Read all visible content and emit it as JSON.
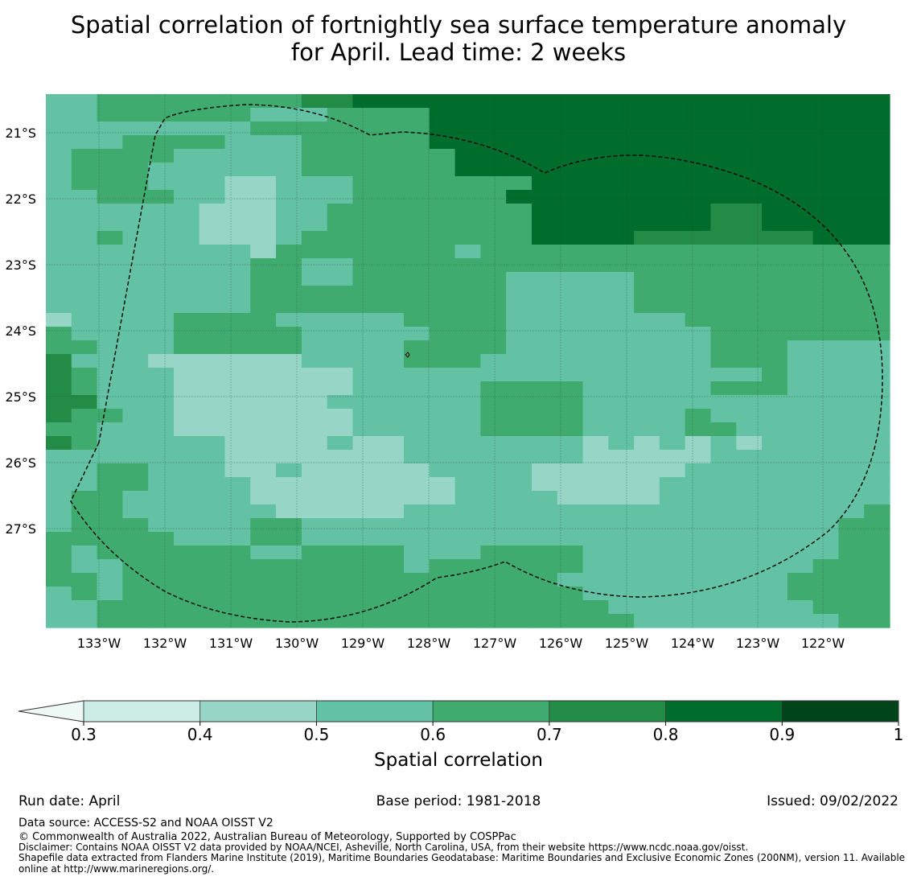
{
  "title_line1": "Spatial correlation of fortnightly sea surface temperature anomaly",
  "title_line2": "for April. Lead time: 2 weeks",
  "lat_labels": [
    "21°S",
    "22°S",
    "23°S",
    "24°S",
    "25°S",
    "26°S",
    "27°S"
  ],
  "lon_labels": [
    "133°W",
    "132°W",
    "131°W",
    "130°W",
    "129°W",
    "128°W",
    "127°W",
    "126°W",
    "125°W",
    "124°W",
    "123°W",
    "122°W"
  ],
  "colorbar": {
    "label": "Spatial correlation",
    "ticks": [
      "0.3",
      "0.4",
      "0.5",
      "0.6",
      "0.7",
      "0.8",
      "0.9",
      "1"
    ],
    "colors": [
      "#eef9f6",
      "#cbede6",
      "#97d6c6",
      "#62c2a3",
      "#3fab6f",
      "#228b45",
      "#006d2c",
      "#00441b"
    ]
  },
  "footer": {
    "run_date": "Run date: April",
    "base_period": "Base period: 1981-2018",
    "issued": "Issued: 09/02/2022",
    "data_source": "Data source: ACCESS-S2 and NOAA OISST V2",
    "copyright": "© Commonwealth of Australia 2022, Australian Bureau of Meteorology, Supported by COSPPac",
    "disclaimer": "Disclaimer: Contains NOAA OISST V2 data provided by NOAA/NCEI, Asheville, North Carolina, USA, from their website https://www.ncdc.noaa.gov/oisst.",
    "shapefile_line1": "Shapefile data extracted from Flanders Marine Institute (2019), Maritime Boundaries Geodatabase: Maritime Boundaries and Exclusive Economic Zones (200NM), version 11. Available",
    "shapefile_line2": "online at http://www.marineregions.org/."
  },
  "map_grid": [
    "334444444455666666666666666666666",
    "334444443334444666666666666666666",
    "333333334444444666666666666666666",
    "333444433344444666666666666666666",
    "344443333344444466666666666666666",
    "344433333344444466666666666666666",
    "344433322333444444466666666666666",
    "334443322333444444666666666666666",
    "333333222334444444466666665566666",
    "333333222334444444466666665566666",
    "334333222344444444466665555555666",
    "333333332444444434444444444444444",
    "333333334433444444444444444444444",
    "333333334433444444333334444444444",
    "333333334444444444333334444444444",
    "333333334444444444333334444444444",
    "233334444333334444333333344444444",
    "433334444433333444333333334444444",
    "443334444433334444333333334443333",
    "533322222233334443333333334443333",
    "543332222222333333333333333343333",
    "543332222222333334444333334443333",
    "553332222223333334444333333333333",
    "544332222222333334444333343333333",
    "443332222222333334444333344333333",
    "543333322223223333333232323233333",
    "333333322222223333333222223333333",
    "334433322322222333322222233333333",
    "334433332222222233322222333333333",
    "344333332222222233332222333333333",
    "344333333222223333333333333333334",
    "344433334433333333333333333333344",
    "444443334433333333333333333333344",
    "434444443344443334444333333333344",
    "433444444444443444444333333333444",
    "443444444444444444443333333334444",
    "343444444444444444444333333334444",
    "334444444444444444444433333333444",
    "334444444444444444444443333333344"
  ]
}
